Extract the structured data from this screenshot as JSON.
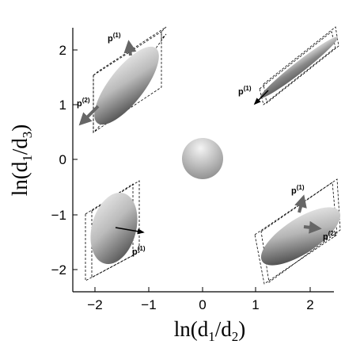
{
  "axes": {
    "x_ticks": [
      "−2",
      "−1",
      "0",
      "1",
      "2"
    ],
    "y_ticks": [
      "2",
      "1",
      "0",
      "−1",
      "−2"
    ],
    "xlabel": {
      "main": "ln(d",
      "sub1": "1",
      "mid": "/d",
      "sub2": "2",
      "end": ")"
    },
    "ylabel": {
      "main": "ln(d",
      "sub1": "1",
      "mid": "/d",
      "sub2": "3",
      "end": ")"
    }
  },
  "vectors": {
    "p1": {
      "base": "p",
      "sup": "(1)"
    },
    "p2": {
      "base": "p",
      "sup": "(2)"
    }
  },
  "colors": {
    "arrow_gray": "#666666",
    "arrow_black": "#000000"
  }
}
